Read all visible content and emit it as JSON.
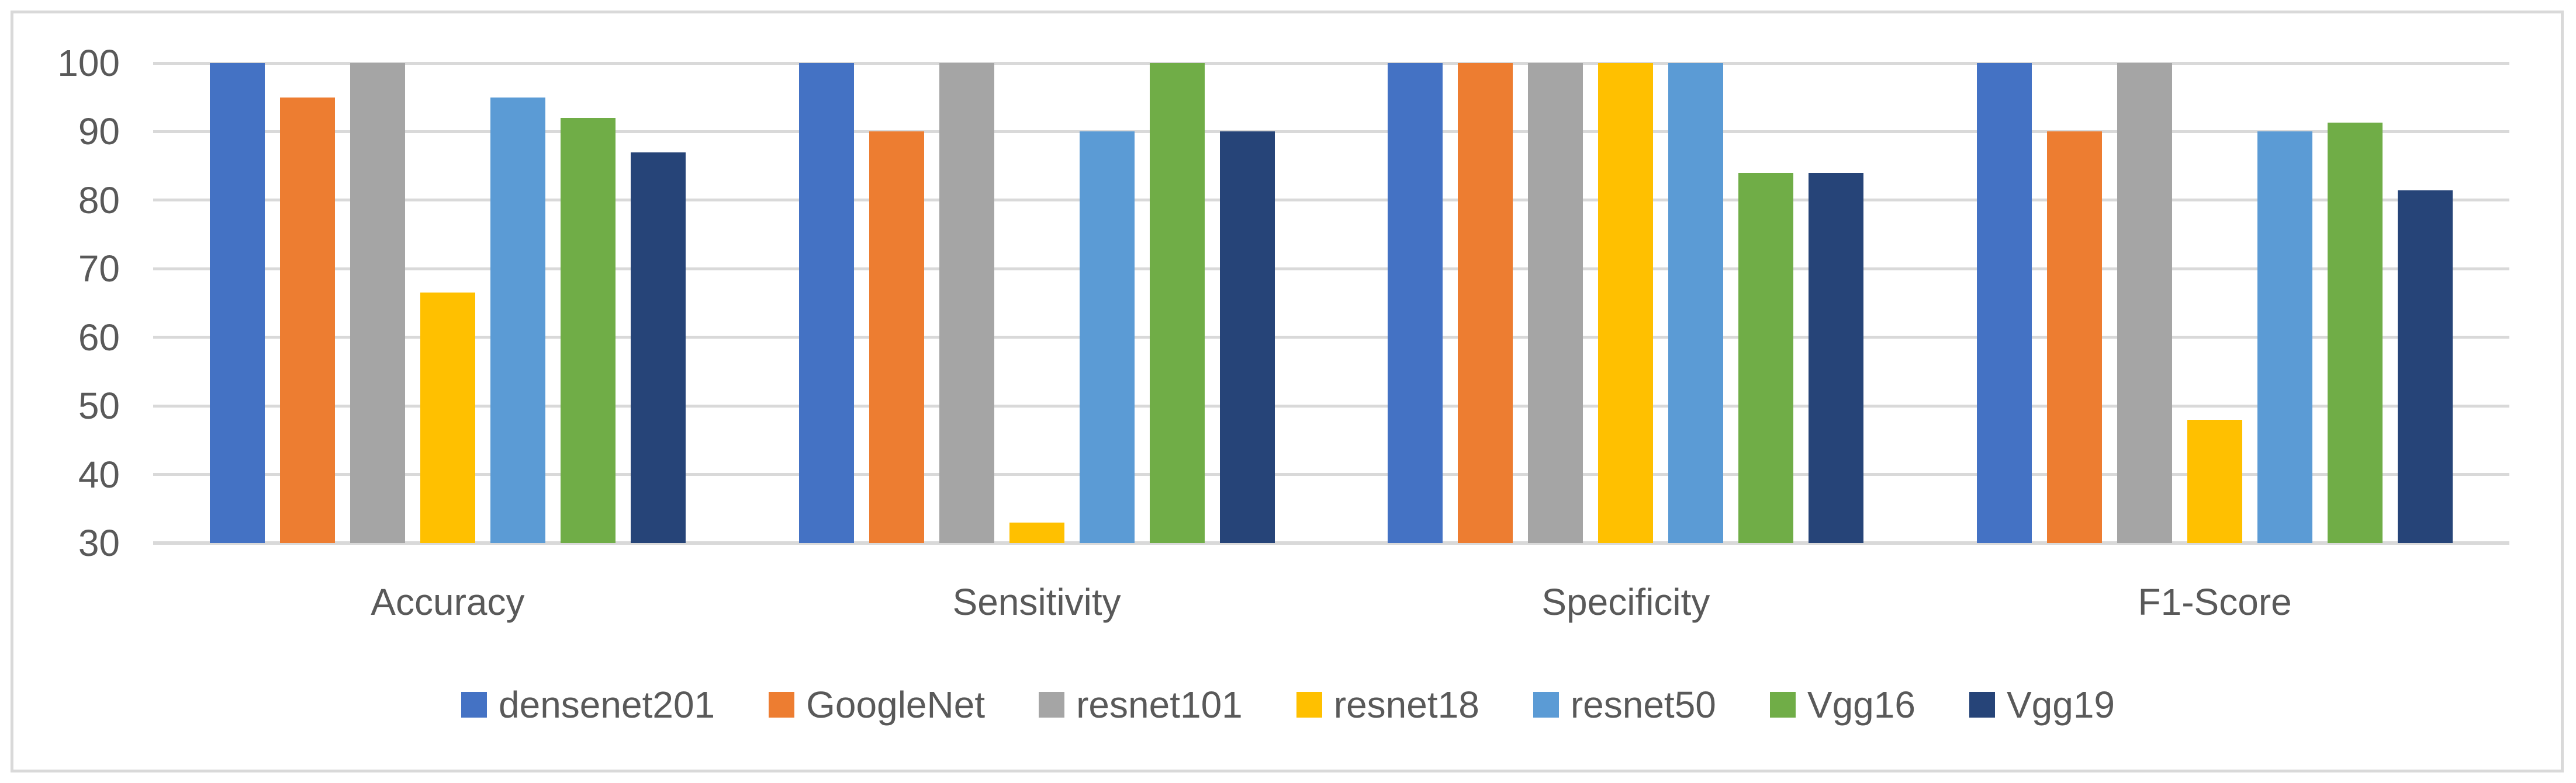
{
  "chart_data": {
    "type": "bar",
    "title": "",
    "subtitle": "",
    "xlabel": "",
    "ylabel": "",
    "categories": [
      "Accuracy",
      "Sensitivity",
      "Specificity",
      "F1-Score"
    ],
    "series": [
      {
        "name": "densenet201",
        "color": "#4472C4",
        "values": [
          100,
          100,
          100,
          100
        ]
      },
      {
        "name": "GoogleNet",
        "color": "#ED7D31",
        "values": [
          95,
          90,
          100,
          90
        ]
      },
      {
        "name": "resnet101",
        "color": "#A5A5A5",
        "values": [
          100,
          100,
          100,
          100
        ]
      },
      {
        "name": "resnet18",
        "color": "#FFC000",
        "values": [
          66.5,
          33,
          100,
          48
        ]
      },
      {
        "name": "resnet50",
        "color": "#5B9BD5",
        "values": [
          95,
          90,
          100,
          90
        ]
      },
      {
        "name": "Vgg16",
        "color": "#70AD47",
        "values": [
          92,
          100,
          84,
          91.3
        ]
      },
      {
        "name": "Vgg19",
        "color": "#264478",
        "values": [
          87,
          90,
          84,
          81.4
        ]
      }
    ],
    "ylim": [
      30,
      100
    ],
    "ytick_step": 10,
    "ytick_labels": [
      "30",
      "40",
      "50",
      "60",
      "70",
      "80",
      "90",
      "100"
    ],
    "grid": "horizontal",
    "legend_position": "bottom"
  },
  "styles": {
    "text_color": "#595959",
    "gridline_color": "#D9D9D9",
    "frame_border_color": "#D9D9D9",
    "background": "#FFFFFF"
  }
}
